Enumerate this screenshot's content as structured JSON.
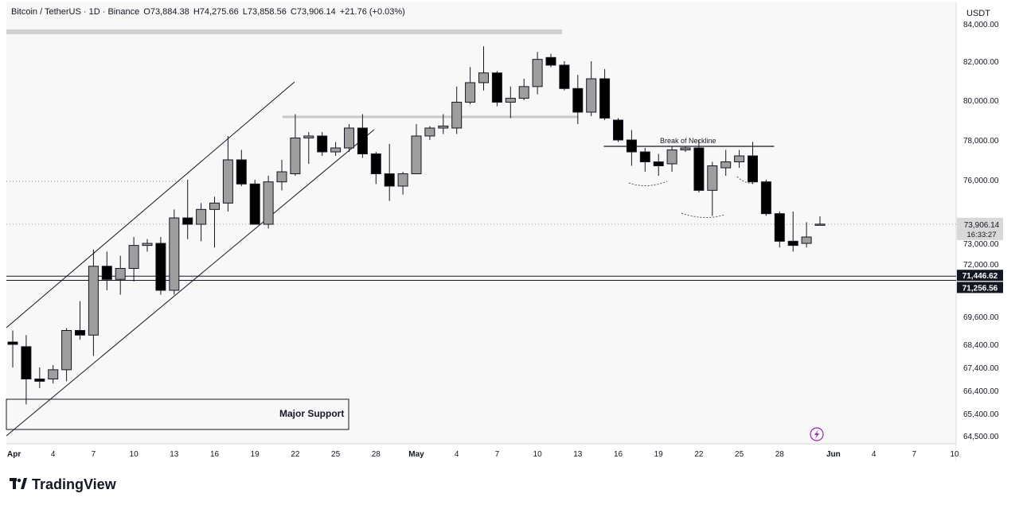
{
  "header": {
    "symbol": "Bitcoin / TetherUS · 1D · Binance",
    "open": "O73,884.38",
    "high": "H74,275.66",
    "low": "L73,858.56",
    "close": "C73,906.14",
    "change": "+21.76 (+0.03%)"
  },
  "currency": "USDT",
  "brand": {
    "name": "TradingView"
  },
  "colors": {
    "up": "#9e9e9e",
    "down": "#000000",
    "line": "#131722",
    "background": "#f8f8f8"
  },
  "chart_data": {
    "type": "candlestick",
    "title": "",
    "ylim": [
      64000,
      84000
    ],
    "y_ticks": [
      {
        "value": 84000,
        "label": "84,000.00"
      },
      {
        "value": 82000,
        "label": "82,000.00"
      },
      {
        "value": 80000,
        "label": "80,000.00"
      },
      {
        "value": 78000,
        "label": "78,000.00"
      },
      {
        "value": 76000,
        "label": "76,000.00"
      },
      {
        "value": 73000,
        "label": "73,000.00"
      },
      {
        "value": 72000,
        "label": "72,000.00"
      },
      {
        "value": 69600,
        "label": "69,600.00"
      },
      {
        "value": 68400,
        "label": "68,400.00"
      },
      {
        "value": 67400,
        "label": "67,400.00"
      },
      {
        "value": 66400,
        "label": "66,400.00"
      },
      {
        "value": 65400,
        "label": "65,400.00"
      },
      {
        "value": 64500,
        "label": "64,500.00"
      }
    ],
    "x_ticks": [
      {
        "day": 1,
        "label": "Apr"
      },
      {
        "day": 4,
        "label": "4"
      },
      {
        "day": 7,
        "label": "7"
      },
      {
        "day": 10,
        "label": "10"
      },
      {
        "day": 13,
        "label": "13"
      },
      {
        "day": 16,
        "label": "16"
      },
      {
        "day": 19,
        "label": "19"
      },
      {
        "day": 22,
        "label": "22"
      },
      {
        "day": 25,
        "label": "25"
      },
      {
        "day": 28,
        "label": "28"
      },
      {
        "day": 31,
        "label": "May"
      },
      {
        "day": 34,
        "label": "4"
      },
      {
        "day": 37,
        "label": "7"
      },
      {
        "day": 40,
        "label": "10"
      },
      {
        "day": 43,
        "label": "13"
      },
      {
        "day": 46,
        "label": "16"
      },
      {
        "day": 49,
        "label": "19"
      },
      {
        "day": 52,
        "label": "22"
      },
      {
        "day": 55,
        "label": "25"
      },
      {
        "day": 58,
        "label": "28"
      },
      {
        "day": 62,
        "label": "Jun"
      },
      {
        "day": 65,
        "label": "4"
      },
      {
        "day": 68,
        "label": "7"
      },
      {
        "day": 71,
        "label": "10"
      }
    ],
    "candles": [
      {
        "day": 1,
        "open": 68500,
        "high": 69000,
        "low": 67400,
        "close": 68400
      },
      {
        "day": 2,
        "open": 68300,
        "high": 68800,
        "low": 65800,
        "close": 66900
      },
      {
        "day": 3,
        "open": 66900,
        "high": 67400,
        "low": 66500,
        "close": 66800
      },
      {
        "day": 4,
        "open": 66900,
        "high": 67500,
        "low": 66700,
        "close": 67300
      },
      {
        "day": 5,
        "open": 67300,
        "high": 69100,
        "low": 66800,
        "close": 69000
      },
      {
        "day": 6,
        "open": 69000,
        "high": 70300,
        "low": 68600,
        "close": 68800
      },
      {
        "day": 7,
        "open": 68800,
        "high": 72700,
        "low": 67900,
        "close": 71900
      },
      {
        "day": 8,
        "open": 71900,
        "high": 72600,
        "low": 70800,
        "close": 71300
      },
      {
        "day": 9,
        "open": 71300,
        "high": 72400,
        "low": 70600,
        "close": 71800
      },
      {
        "day": 10,
        "open": 71800,
        "high": 73300,
        "low": 71200,
        "close": 72900
      },
      {
        "day": 11,
        "open": 72900,
        "high": 73200,
        "low": 72600,
        "close": 73000
      },
      {
        "day": 12,
        "open": 73000,
        "high": 73300,
        "low": 70600,
        "close": 70800
      },
      {
        "day": 13,
        "open": 70800,
        "high": 74600,
        "low": 70600,
        "close": 74200
      },
      {
        "day": 14,
        "open": 74200,
        "high": 76000,
        "low": 73200,
        "close": 73900
      },
      {
        "day": 15,
        "open": 73900,
        "high": 74900,
        "low": 73100,
        "close": 74600
      },
      {
        "day": 16,
        "open": 74600,
        "high": 75200,
        "low": 72800,
        "close": 74900
      },
      {
        "day": 17,
        "open": 74900,
        "high": 78200,
        "low": 74500,
        "close": 77000
      },
      {
        "day": 18,
        "open": 77000,
        "high": 77500,
        "low": 75700,
        "close": 75800
      },
      {
        "day": 19,
        "open": 75800,
        "high": 76000,
        "low": 73900,
        "close": 73900
      },
      {
        "day": 20,
        "open": 73900,
        "high": 76200,
        "low": 73700,
        "close": 75900
      },
      {
        "day": 21,
        "open": 75900,
        "high": 77000,
        "low": 75500,
        "close": 76400
      },
      {
        "day": 22,
        "open": 76300,
        "high": 79300,
        "low": 76200,
        "close": 78100
      },
      {
        "day": 23,
        "open": 78100,
        "high": 78400,
        "low": 76800,
        "close": 78200
      },
      {
        "day": 24,
        "open": 78200,
        "high": 78400,
        "low": 77200,
        "close": 77400
      },
      {
        "day": 25,
        "open": 77400,
        "high": 77900,
        "low": 77200,
        "close": 77600
      },
      {
        "day": 26,
        "open": 77600,
        "high": 78800,
        "low": 77400,
        "close": 78600
      },
      {
        "day": 27,
        "open": 78600,
        "high": 79300,
        "low": 77100,
        "close": 77300
      },
      {
        "day": 28,
        "open": 77300,
        "high": 77400,
        "low": 75800,
        "close": 76300
      },
      {
        "day": 29,
        "open": 76300,
        "high": 77800,
        "low": 75000,
        "close": 75700
      },
      {
        "day": 30,
        "open": 75700,
        "high": 76400,
        "low": 75300,
        "close": 76300
      },
      {
        "day": 31,
        "open": 76300,
        "high": 78800,
        "low": 76300,
        "close": 78200
      },
      {
        "day": 32,
        "open": 78200,
        "high": 78700,
        "low": 78000,
        "close": 78600
      },
      {
        "day": 33,
        "open": 78600,
        "high": 79300,
        "low": 78300,
        "close": 78700
      },
      {
        "day": 34,
        "open": 78600,
        "high": 80700,
        "low": 78300,
        "close": 79900
      },
      {
        "day": 35,
        "open": 79900,
        "high": 81700,
        "low": 79800,
        "close": 80900
      },
      {
        "day": 36,
        "open": 80900,
        "high": 82800,
        "low": 80500,
        "close": 81400
      },
      {
        "day": 37,
        "open": 81400,
        "high": 81500,
        "low": 79700,
        "close": 79900
      },
      {
        "day": 38,
        "open": 79900,
        "high": 80700,
        "low": 79100,
        "close": 80100
      },
      {
        "day": 39,
        "open": 80100,
        "high": 81100,
        "low": 80000,
        "close": 80700
      },
      {
        "day": 40,
        "open": 80700,
        "high": 82500,
        "low": 80300,
        "close": 82100
      },
      {
        "day": 41,
        "open": 82200,
        "high": 82400,
        "low": 81700,
        "close": 81800
      },
      {
        "day": 42,
        "open": 81800,
        "high": 82000,
        "low": 80500,
        "close": 80600
      },
      {
        "day": 43,
        "open": 80600,
        "high": 81300,
        "low": 78800,
        "close": 79400
      },
      {
        "day": 44,
        "open": 79400,
        "high": 82000,
        "low": 79200,
        "close": 81100
      },
      {
        "day": 45,
        "open": 81100,
        "high": 81600,
        "low": 79000,
        "close": 79100
      },
      {
        "day": 46,
        "open": 79000,
        "high": 79100,
        "low": 77900,
        "close": 78000
      },
      {
        "day": 47,
        "open": 78000,
        "high": 78500,
        "low": 76700,
        "close": 77400
      },
      {
        "day": 48,
        "open": 77400,
        "high": 77600,
        "low": 76400,
        "close": 76900
      },
      {
        "day": 49,
        "open": 76900,
        "high": 77300,
        "low": 76200,
        "close": 76700
      },
      {
        "day": 50,
        "open": 76800,
        "high": 77700,
        "low": 76400,
        "close": 77500
      },
      {
        "day": 51,
        "open": 77500,
        "high": 77700,
        "low": 77400,
        "close": 77600
      },
      {
        "day": 52,
        "open": 77600,
        "high": 78000,
        "low": 75400,
        "close": 75500
      },
      {
        "day": 53,
        "open": 75500,
        "high": 76900,
        "low": 74300,
        "close": 76700
      },
      {
        "day": 54,
        "open": 76600,
        "high": 77500,
        "low": 76200,
        "close": 76900
      },
      {
        "day": 55,
        "open": 76900,
        "high": 77500,
        "low": 76600,
        "close": 77200
      },
      {
        "day": 56,
        "open": 77200,
        "high": 77900,
        "low": 75800,
        "close": 75900
      },
      {
        "day": 57,
        "open": 75900,
        "high": 76000,
        "low": 74300,
        "close": 74400
      },
      {
        "day": 58,
        "open": 74400,
        "high": 74500,
        "low": 72800,
        "close": 73100
      },
      {
        "day": 59,
        "open": 73100,
        "high": 74500,
        "low": 72600,
        "close": 72900
      },
      {
        "day": 60,
        "open": 73000,
        "high": 74000,
        "low": 72800,
        "close": 73300
      },
      {
        "day": 61,
        "open": 73884.38,
        "high": 74275.66,
        "low": 73858.56,
        "close": 73906.14
      }
    ],
    "levels": [
      {
        "price": 71446.62,
        "label": "71,446.62"
      },
      {
        "price": 71256.56,
        "label": "71,256.56"
      }
    ],
    "last_price": {
      "price": 73906.14,
      "label": "73,906.14",
      "countdown": "16:33:27"
    },
    "annotations": {
      "neckline_label": "Break of Neckline",
      "support_label": "Major Support"
    }
  }
}
